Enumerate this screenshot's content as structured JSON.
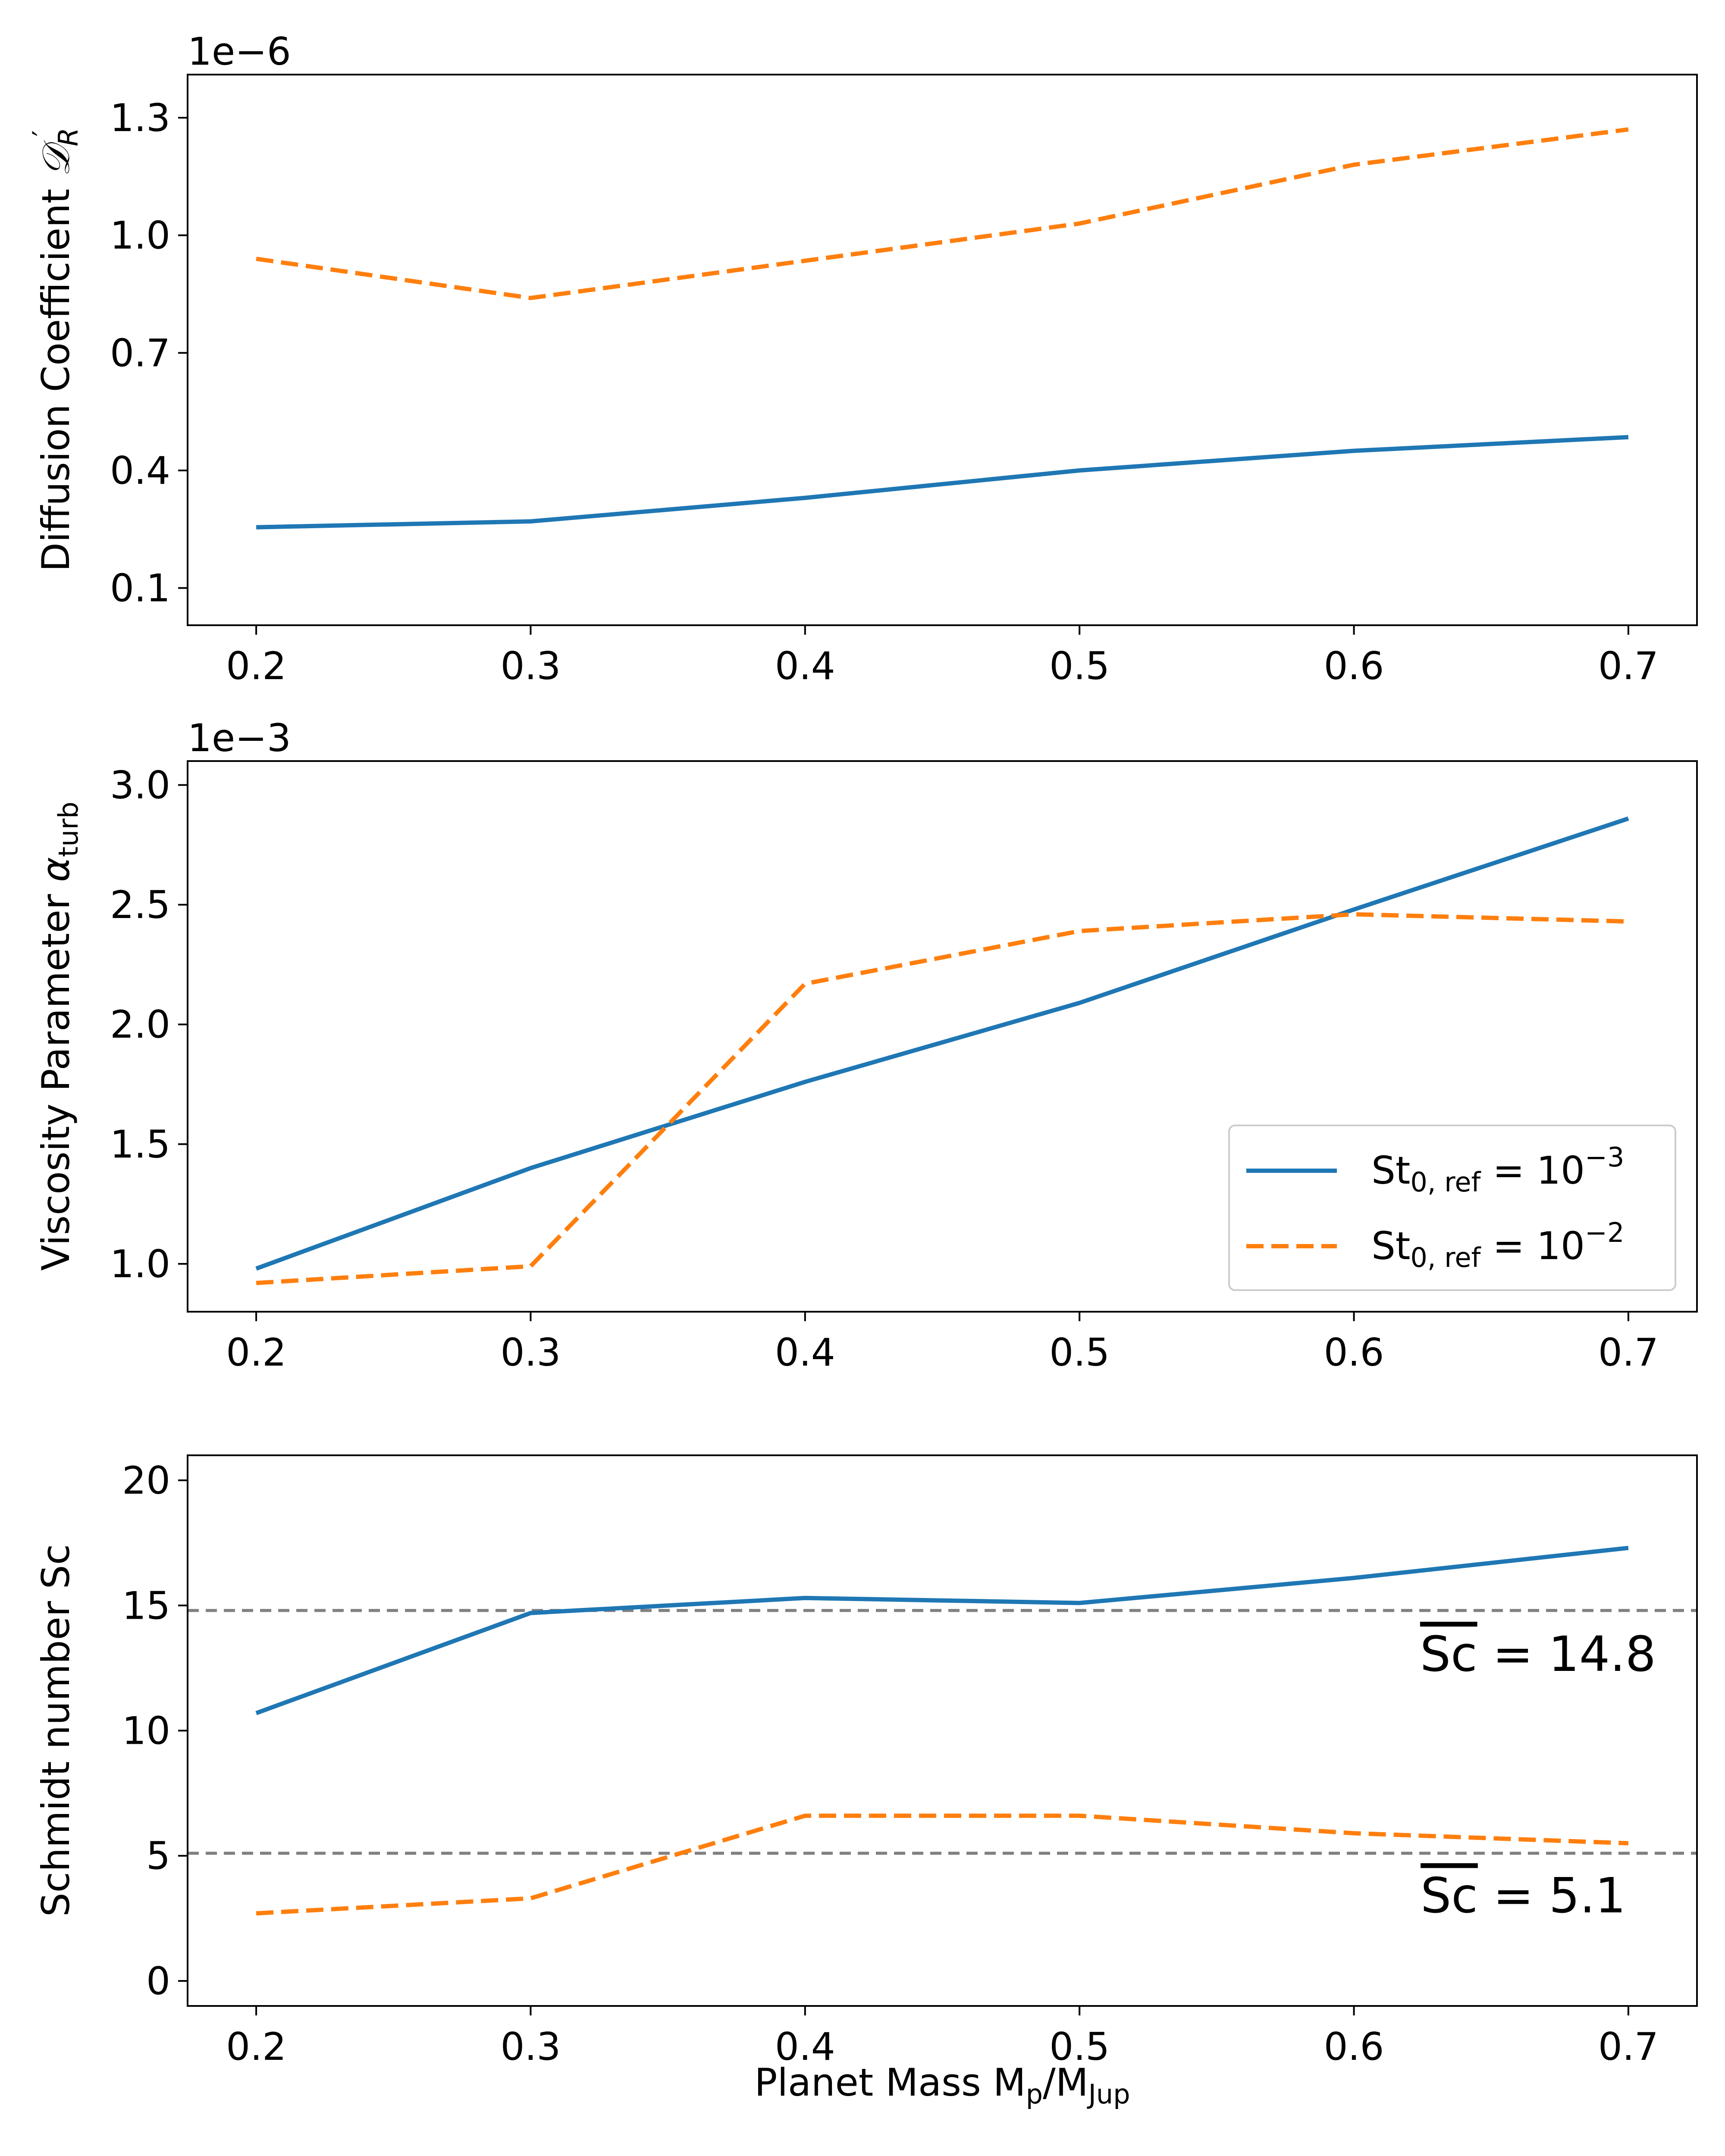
{
  "figure": {
    "xlabel": "Planet Mass M",
    "xlabel_sub_1": "p",
    "xlabel_div": "/M",
    "xlabel_sub_2": "Jup"
  },
  "colors": {
    "blue": "#1f77b4",
    "orange": "#ff7f0e",
    "gray": "#808080",
    "axis": "#000000"
  },
  "legend": [
    {
      "label": "St",
      "sub": "0, ref",
      "eq": " = 10",
      "sup": "−3",
      "series": 0
    },
    {
      "label": "St",
      "sub": "0, ref",
      "eq": " = 10",
      "sup": "−2",
      "series": 1
    }
  ],
  "chart_data": [
    {
      "type": "line",
      "ylabel": "Diffusion Coefficient ",
      "ylabel_symbol": "𝒟",
      "ylabel_sub": "R",
      "ylabel_prime": "′",
      "offset_label": "1e−6",
      "x": [
        0.2,
        0.3,
        0.4,
        0.5,
        0.6,
        0.7
      ],
      "xticks": [
        "0.2",
        "0.3",
        "0.4",
        "0.5",
        "0.6",
        "0.7"
      ],
      "xlim": [
        0.175,
        0.725
      ],
      "ylim": [
        0.005,
        1.41
      ],
      "yticks": [
        "0.1",
        "0.4",
        "0.7",
        "1.0",
        "1.3"
      ],
      "ytick_values": [
        0.1,
        0.4,
        0.7,
        1.0,
        1.3
      ],
      "series": [
        {
          "name": "St0,ref = 10^-3",
          "style": "solid",
          "color": "#1f77b4",
          "values": [
            0.255,
            0.27,
            0.33,
            0.4,
            0.45,
            0.485
          ]
        },
        {
          "name": "St0,ref = 10^-2",
          "style": "dashed",
          "color": "#ff7f0e",
          "values": [
            0.94,
            0.84,
            0.935,
            1.03,
            1.18,
            1.27
          ]
        }
      ]
    },
    {
      "type": "line",
      "ylabel": "Viscosity Parameter ",
      "ylabel_symbol": "α",
      "ylabel_sub": "turb",
      "offset_label": "1e−3",
      "x": [
        0.2,
        0.3,
        0.4,
        0.5,
        0.6,
        0.7
      ],
      "xticks": [
        "0.2",
        "0.3",
        "0.4",
        "0.5",
        "0.6",
        "0.7"
      ],
      "xlim": [
        0.175,
        0.725
      ],
      "ylim": [
        0.8,
        3.1
      ],
      "yticks": [
        "1.0",
        "1.5",
        "2.0",
        "2.5",
        "3.0"
      ],
      "ytick_values": [
        1.0,
        1.5,
        2.0,
        2.5,
        3.0
      ],
      "series": [
        {
          "name": "St0,ref = 10^-3",
          "style": "solid",
          "color": "#1f77b4",
          "values": [
            0.98,
            1.4,
            1.76,
            2.09,
            2.48,
            2.86
          ]
        },
        {
          "name": "St0,ref = 10^-2",
          "style": "dashed",
          "color": "#ff7f0e",
          "values": [
            0.92,
            0.99,
            2.17,
            2.39,
            2.46,
            2.43
          ]
        }
      ]
    },
    {
      "type": "line",
      "ylabel": "Schmidt number Sc",
      "x": [
        0.2,
        0.3,
        0.4,
        0.5,
        0.6,
        0.7
      ],
      "xticks": [
        "0.2",
        "0.3",
        "0.4",
        "0.5",
        "0.6",
        "0.7"
      ],
      "xlim": [
        0.175,
        0.725
      ],
      "ylim": [
        -1.0,
        21.0
      ],
      "yticks": [
        "0",
        "5",
        "10",
        "15",
        "20"
      ],
      "ytick_values": [
        0,
        5,
        10,
        15,
        20
      ],
      "series": [
        {
          "name": "St0,ref = 10^-3",
          "style": "solid",
          "color": "#1f77b4",
          "values": [
            10.7,
            14.7,
            15.3,
            15.1,
            16.1,
            17.3
          ]
        },
        {
          "name": "St0,ref = 10^-2",
          "style": "dashed",
          "color": "#ff7f0e",
          "values": [
            2.7,
            3.3,
            6.6,
            6.6,
            5.9,
            5.5
          ]
        }
      ],
      "hlines": [
        {
          "y": 14.8,
          "sym": "Sc",
          "text": " = 14.8"
        },
        {
          "y": 5.1,
          "sym": "Sc",
          "text": " = 5.1"
        }
      ]
    }
  ]
}
